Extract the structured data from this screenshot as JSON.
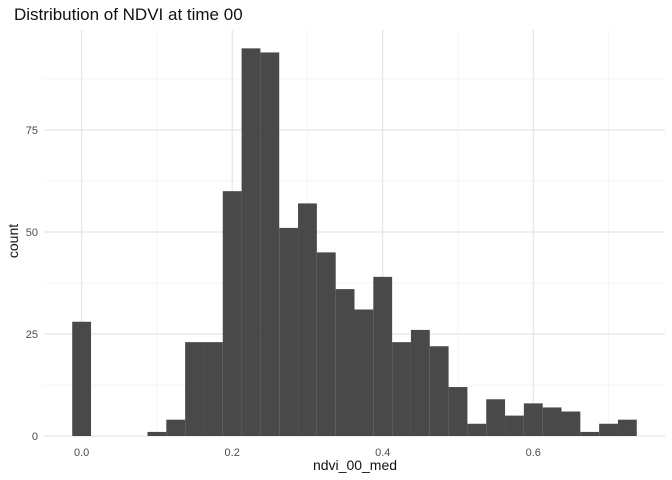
{
  "chart_data": {
    "type": "bar",
    "title": "Distribution of NDVI at time 00",
    "xlabel": "ndvi_00_med",
    "ylabel": "count",
    "xlim": [
      -0.05,
      0.775
    ],
    "ylim": [
      0,
      99.5
    ],
    "x_ticks": [
      0.0,
      0.2,
      0.4,
      0.6
    ],
    "x_tick_labels": [
      "0.0",
      "0.2",
      "0.4",
      "0.6"
    ],
    "y_ticks": [
      0,
      25,
      50,
      75
    ],
    "y_tick_labels": [
      "0",
      "25",
      "50",
      "75"
    ],
    "x_minor_ticks": [
      0.1,
      0.3,
      0.5,
      0.7
    ],
    "y_minor_ticks": [
      12.5,
      37.5,
      62.5,
      87.5
    ],
    "grid": true,
    "bar_color": "#494949",
    "bin_width": 0.025,
    "bins": [
      {
        "x": 0.0,
        "count": 28
      },
      {
        "x": 0.1,
        "count": 1
      },
      {
        "x": 0.125,
        "count": 4
      },
      {
        "x": 0.15,
        "count": 23
      },
      {
        "x": 0.175,
        "count": 23
      },
      {
        "x": 0.2,
        "count": 60
      },
      {
        "x": 0.225,
        "count": 95
      },
      {
        "x": 0.25,
        "count": 94
      },
      {
        "x": 0.275,
        "count": 51
      },
      {
        "x": 0.3,
        "count": 57
      },
      {
        "x": 0.325,
        "count": 45
      },
      {
        "x": 0.35,
        "count": 36
      },
      {
        "x": 0.375,
        "count": 31
      },
      {
        "x": 0.4,
        "count": 39
      },
      {
        "x": 0.425,
        "count": 23
      },
      {
        "x": 0.45,
        "count": 26
      },
      {
        "x": 0.475,
        "count": 22
      },
      {
        "x": 0.5,
        "count": 12
      },
      {
        "x": 0.525,
        "count": 3
      },
      {
        "x": 0.55,
        "count": 9
      },
      {
        "x": 0.575,
        "count": 5
      },
      {
        "x": 0.6,
        "count": 8
      },
      {
        "x": 0.625,
        "count": 7
      },
      {
        "x": 0.65,
        "count": 6
      },
      {
        "x": 0.675,
        "count": 1
      },
      {
        "x": 0.7,
        "count": 3
      },
      {
        "x": 0.725,
        "count": 4
      }
    ]
  }
}
